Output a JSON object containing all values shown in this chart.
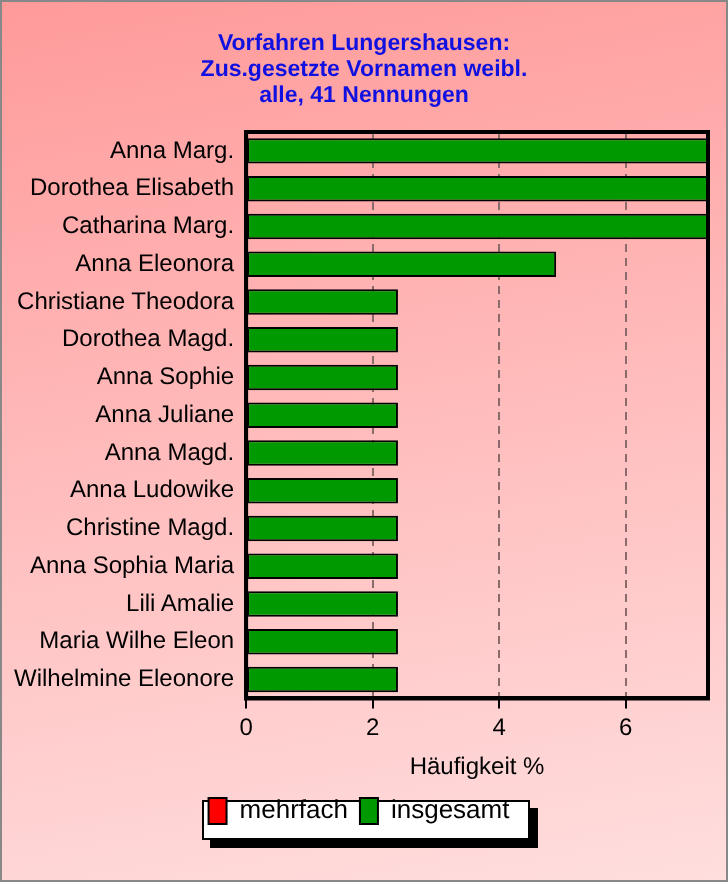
{
  "chart_data": {
    "type": "bar",
    "orientation": "horizontal",
    "title": "Vorfahren Lungershausen:\nZus.gesetzte Vornamen weibl.\nalle, 41 Nennungen",
    "xlabel": "Häufigkeit %",
    "categories": [
      "Anna Marg.",
      "Dorothea Elisabeth",
      "Catharina Marg.",
      "Anna Eleonora",
      "Christiane Theodora",
      "Dorothea Magd.",
      "Anna Sophie",
      "Anna Juliane",
      "Anna Magd.",
      "Anna Ludowike",
      "Christine Magd.",
      "Anna Sophia Maria",
      "Lili Amalie",
      "Maria Wilhe Eleon",
      "Wilhelmine Eleonore"
    ],
    "series": [
      {
        "name": "mehrfach",
        "color": "#ff0000",
        "values": [
          null,
          null,
          null,
          null,
          null,
          null,
          null,
          null,
          null,
          null,
          null,
          null,
          null,
          null,
          null
        ]
      },
      {
        "name": "insgesamt",
        "color": "#009900",
        "values": [
          7.3,
          7.3,
          7.3,
          4.9,
          2.4,
          2.4,
          2.4,
          2.4,
          2.4,
          2.4,
          2.4,
          2.4,
          2.4,
          2.4,
          2.4
        ]
      }
    ],
    "xlim": [
      0,
      7.3
    ],
    "xticks": [
      0,
      2,
      4,
      6
    ],
    "grid": "x",
    "legend": "bottom"
  }
}
